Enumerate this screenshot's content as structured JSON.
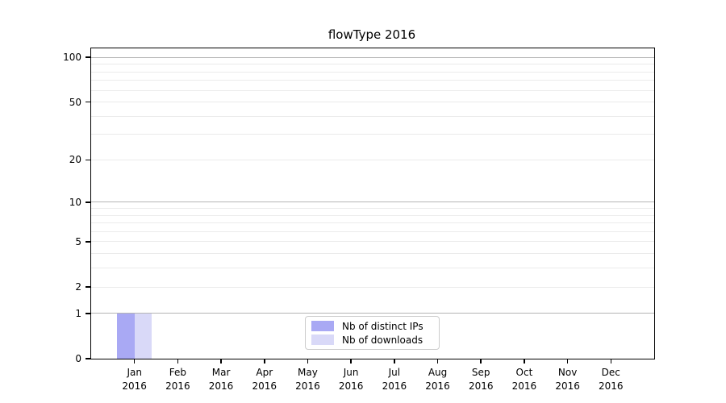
{
  "chart_data": {
    "type": "bar",
    "title": "flowType 2016",
    "categories": [
      {
        "month": "Jan",
        "year": "2016"
      },
      {
        "month": "Feb",
        "year": "2016"
      },
      {
        "month": "Mar",
        "year": "2016"
      },
      {
        "month": "Apr",
        "year": "2016"
      },
      {
        "month": "May",
        "year": "2016"
      },
      {
        "month": "Jun",
        "year": "2016"
      },
      {
        "month": "Jul",
        "year": "2016"
      },
      {
        "month": "Aug",
        "year": "2016"
      },
      {
        "month": "Sep",
        "year": "2016"
      },
      {
        "month": "Oct",
        "year": "2016"
      },
      {
        "month": "Nov",
        "year": "2016"
      },
      {
        "month": "Dec",
        "year": "2016"
      }
    ],
    "series": [
      {
        "name": "Nb of distinct IPs",
        "color": "#a9a9f4",
        "values": [
          1,
          0,
          0,
          0,
          0,
          0,
          0,
          0,
          0,
          0,
          0,
          0
        ]
      },
      {
        "name": "Nb of downloads",
        "color": "#d9d9f8",
        "values": [
          1,
          0,
          0,
          0,
          0,
          0,
          0,
          0,
          0,
          0,
          0,
          0
        ]
      }
    ],
    "yscale": "log1p",
    "ylim": [
      0,
      115
    ],
    "yticks": [
      0,
      1,
      2,
      5,
      10,
      20,
      50,
      100
    ],
    "grid": {
      "major": [
        1,
        10,
        100
      ],
      "minor": [
        2,
        3,
        4,
        5,
        6,
        7,
        8,
        9,
        20,
        30,
        40,
        50,
        60,
        70,
        80,
        90
      ]
    },
    "grid_major_color": "#b4b4b4",
    "grid_minor_color": "#ebebeb",
    "legend_position": "lower center"
  }
}
